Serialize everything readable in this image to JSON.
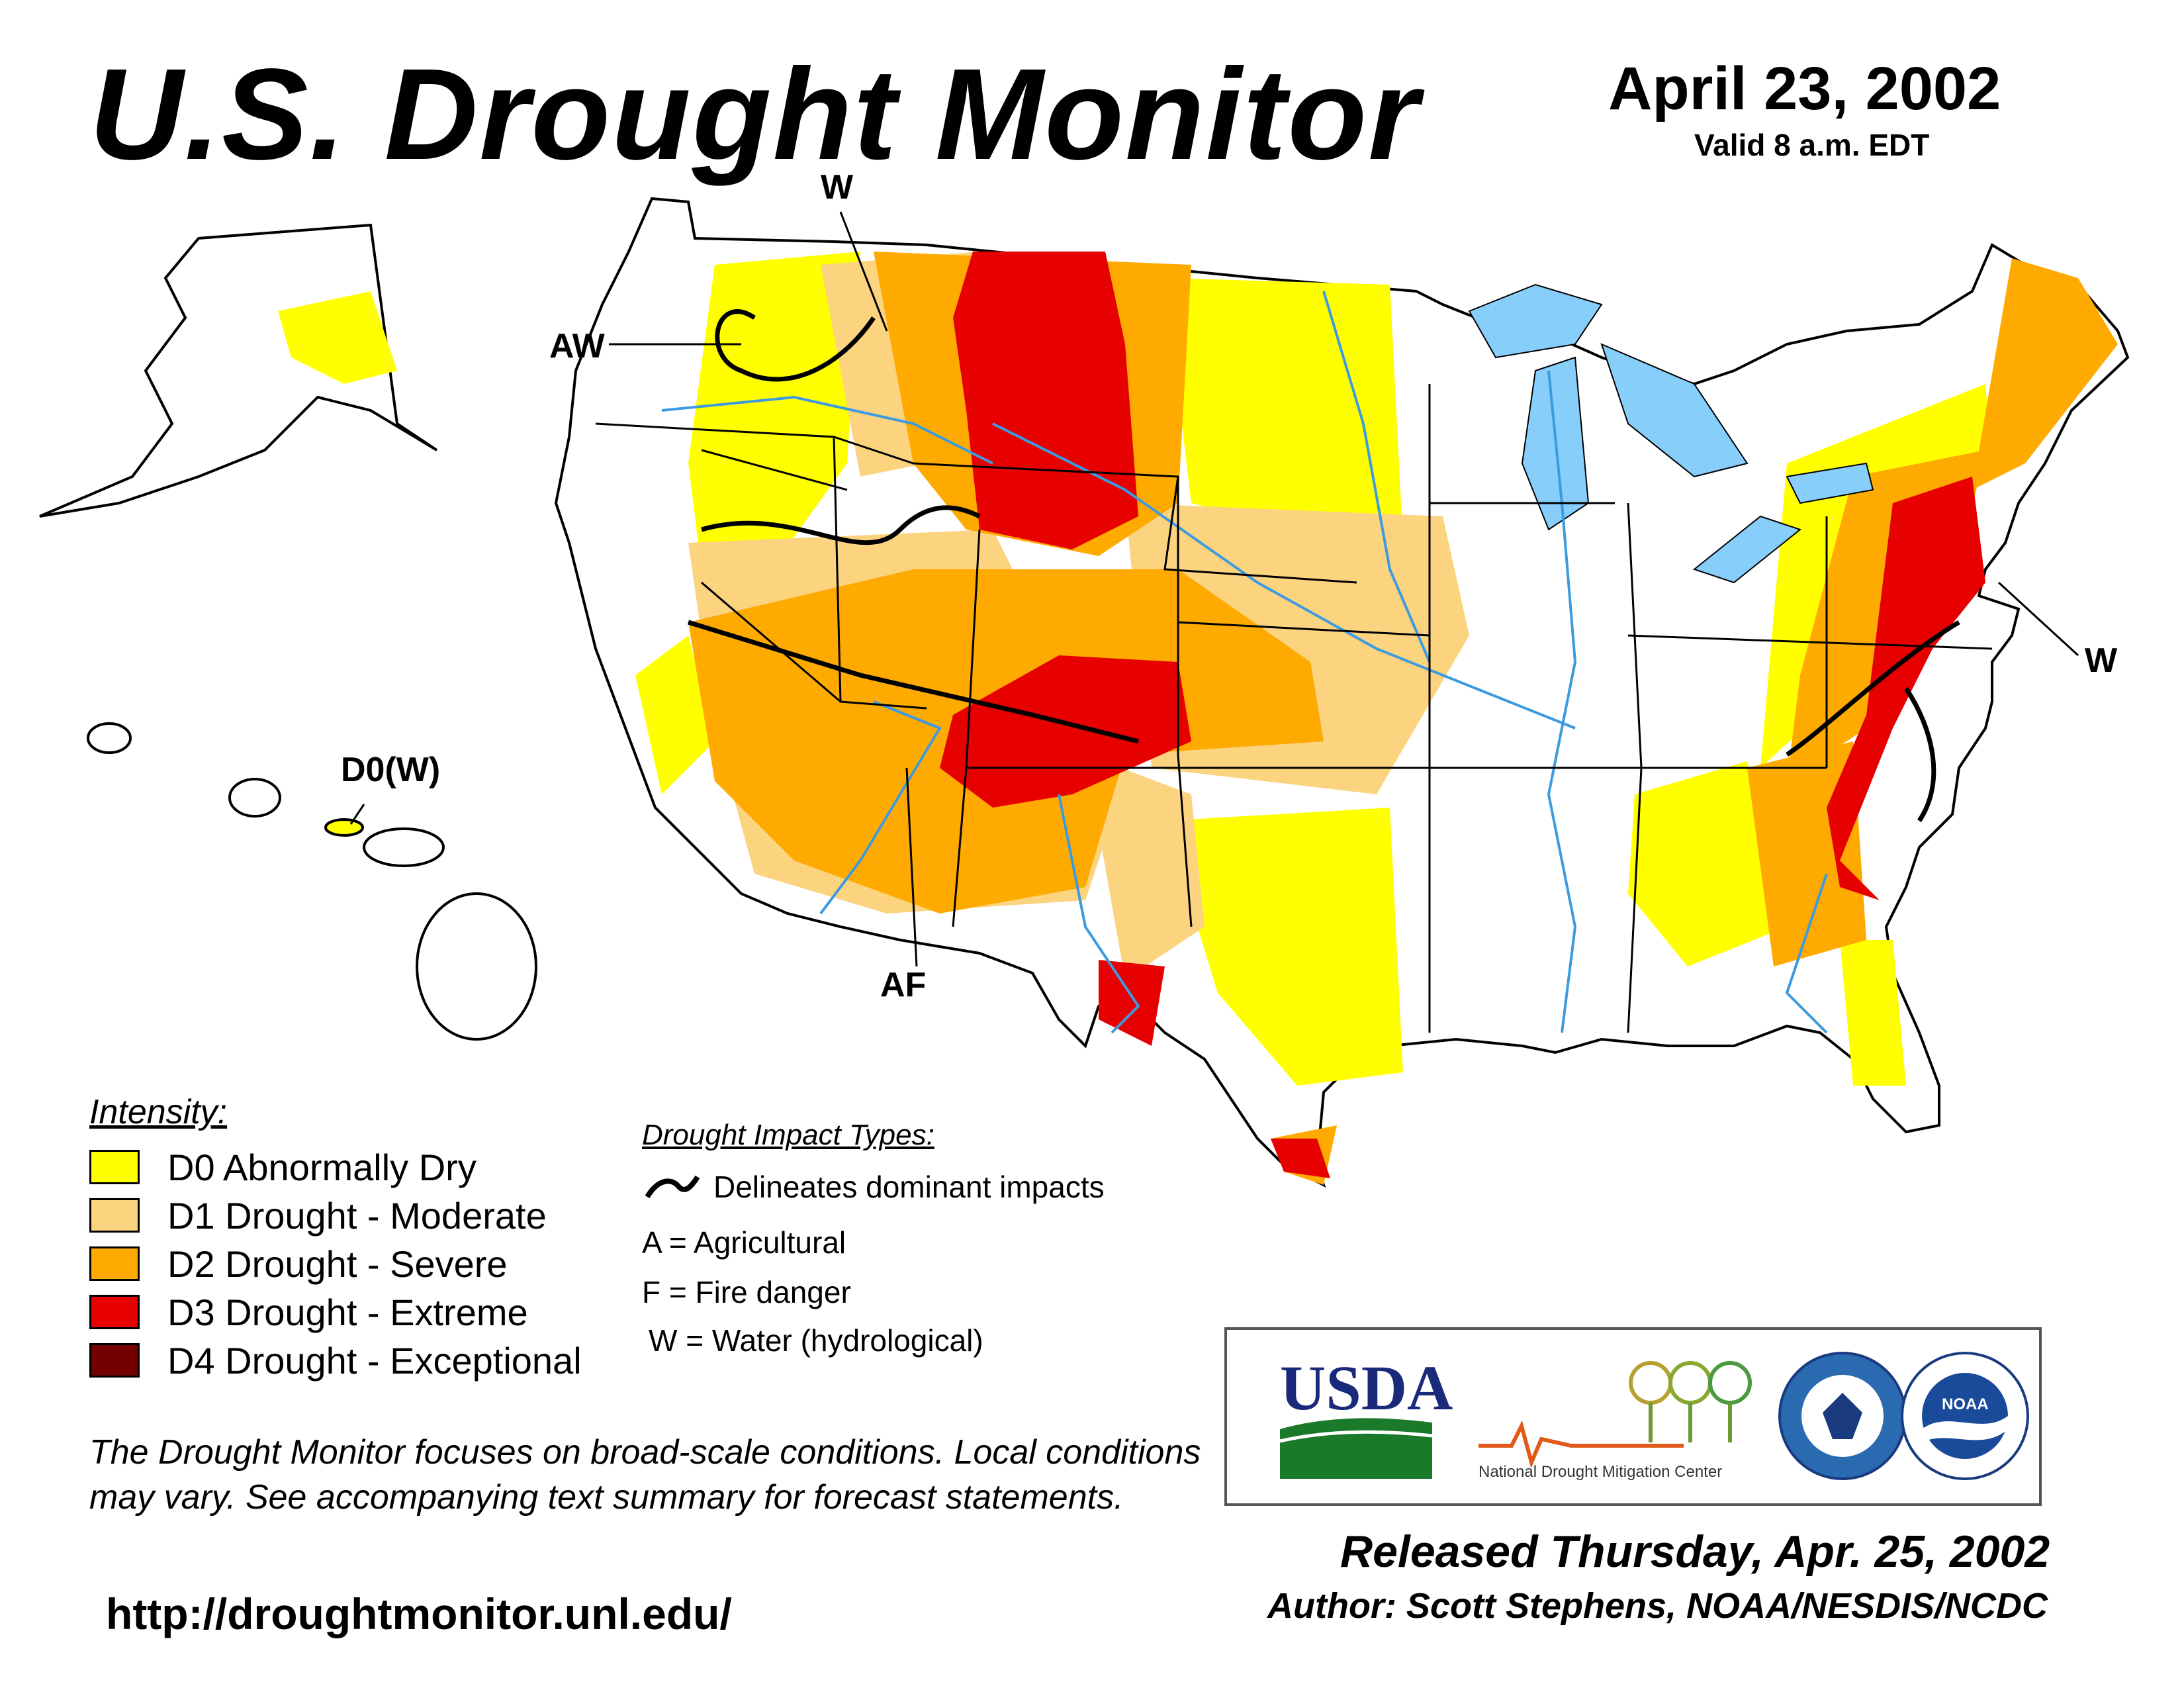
{
  "header": {
    "title": "U.S. Drought Monitor",
    "date": "April 23, 2002",
    "valid": "Valid 8 a.m. EDT"
  },
  "map": {
    "labels": {
      "west_w": "W",
      "nw_aw": "AW",
      "hawaii": "D0(W)",
      "southwest": "AF",
      "east_w": "W"
    },
    "colors": {
      "D0": "#ffff00",
      "D1": "#fcd37f",
      "D2": "#ffaa00",
      "D3": "#e60000",
      "D4": "#730000",
      "water": "#87cefa",
      "river": "#3c9be0",
      "county": "#999999",
      "state": "#000000"
    }
  },
  "legend": {
    "title": "Intensity:",
    "items": [
      {
        "code": "D0",
        "label": "D0 Abnormally Dry",
        "color": "#ffff00"
      },
      {
        "code": "D1",
        "label": "D1 Drought - Moderate",
        "color": "#fcd37f"
      },
      {
        "code": "D2",
        "label": "D2 Drought - Severe",
        "color": "#ffaa00"
      },
      {
        "code": "D3",
        "label": "D3 Drought - Extreme",
        "color": "#e60000"
      },
      {
        "code": "D4",
        "label": "D4 Drought - Exceptional",
        "color": "#730000"
      }
    ]
  },
  "impacts": {
    "title": "Drought Impact Types:",
    "line_desc": "Delineates dominant impacts",
    "agricultural": "A = Agricultural",
    "fire": "F = Fire danger",
    "water": "W = Water (hydrological)"
  },
  "disclaimer": "The Drought Monitor focuses on broad-scale conditions. Local conditions may vary. See accompanying text summary for forecast statements.",
  "url": "http://droughtmonitor.unl.edu/",
  "logos": {
    "usda": "USDA",
    "ndmc": "National Drought Mitigation Center",
    "noaa": "NOAA"
  },
  "footer": {
    "released": "Released Thursday, Apr. 25, 2002",
    "author": "Author: Scott Stephens, NOAA/NESDIS/NCDC"
  }
}
